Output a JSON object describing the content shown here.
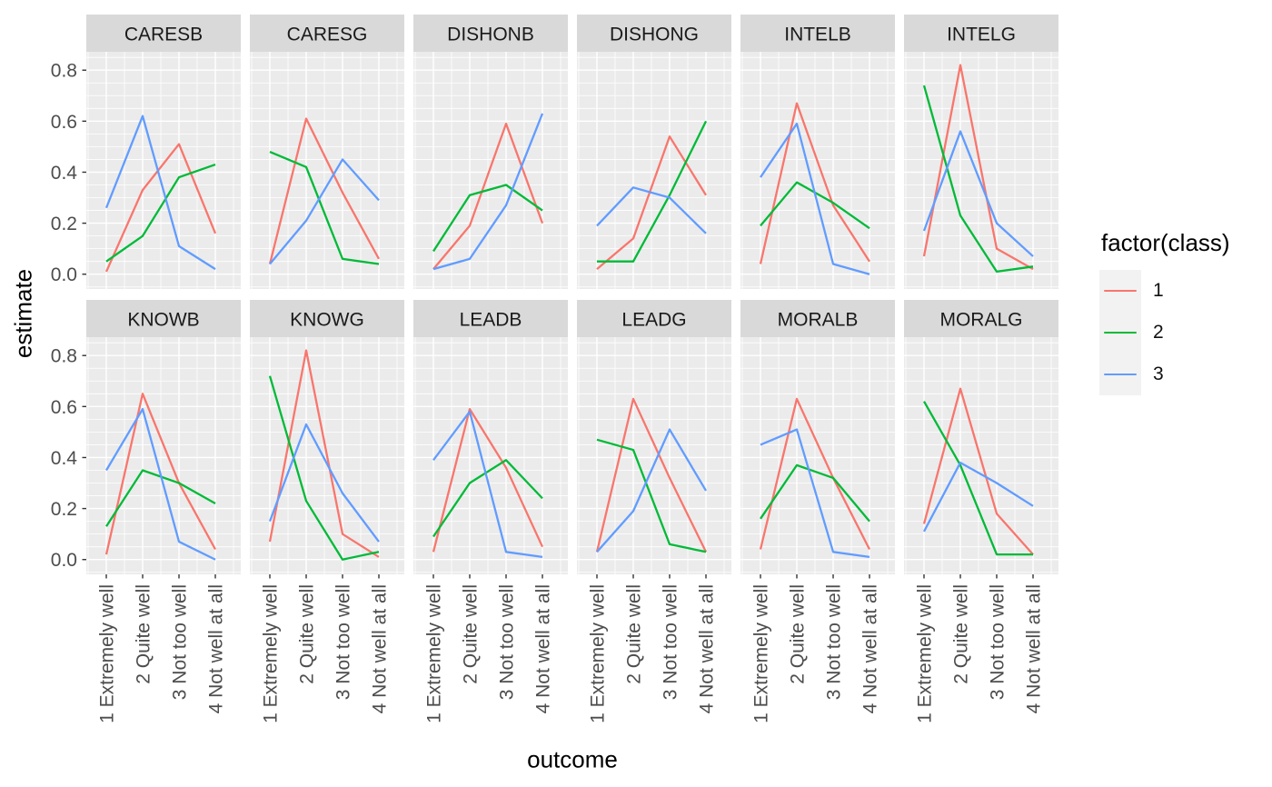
{
  "figure": {
    "y_axis_title": "estimate",
    "x_axis_title": "outcome"
  },
  "legend": {
    "title": "factor(class)",
    "items": [
      {
        "label": "1",
        "color": "#F8766D"
      },
      {
        "label": "2",
        "color": "#00BA38"
      },
      {
        "label": "3",
        "color": "#619CFF"
      }
    ]
  },
  "colors": {
    "background": "#FFFFFF",
    "panel_bg": "#EBEBEB",
    "strip_bg": "#D9D9D9",
    "grid": "#FFFFFF",
    "strip_text": "#1A1A1A",
    "tick_text": "#4D4D4D",
    "tick_mark": "#333333",
    "legend_key_bg": "#F2F2F2"
  },
  "chart_data": {
    "type": "line",
    "title": "",
    "xlabel": "outcome",
    "ylabel": "estimate",
    "x": [
      1,
      2,
      3,
      4
    ],
    "x_tick_labels": [
      "1 Extremely well",
      "2 Quite well",
      "3 Not too well",
      "4 Not well at all"
    ],
    "y_ticks": [
      0.0,
      0.2,
      0.4,
      0.6,
      0.8
    ],
    "ylim": [
      0,
      0.87
    ],
    "grid": true,
    "legend_title": "factor(class)",
    "legend_position": "right",
    "facet_layout": {
      "rows": 2,
      "cols": 6
    },
    "facets": [
      {
        "name": "CARESB",
        "series": [
          {
            "name": "1",
            "values": [
              0.01,
              0.33,
              0.51,
              0.16
            ]
          },
          {
            "name": "2",
            "values": [
              0.05,
              0.15,
              0.38,
              0.43
            ]
          },
          {
            "name": "3",
            "values": [
              0.26,
              0.62,
              0.11,
              0.02
            ]
          }
        ]
      },
      {
        "name": "CARESG",
        "series": [
          {
            "name": "1",
            "values": [
              0.04,
              0.61,
              0.32,
              0.06
            ]
          },
          {
            "name": "2",
            "values": [
              0.48,
              0.42,
              0.06,
              0.04
            ]
          },
          {
            "name": "3",
            "values": [
              0.04,
              0.21,
              0.45,
              0.29
            ]
          }
        ]
      },
      {
        "name": "DISHONB",
        "series": [
          {
            "name": "1",
            "values": [
              0.02,
              0.19,
              0.59,
              0.2
            ]
          },
          {
            "name": "2",
            "values": [
              0.09,
              0.31,
              0.35,
              0.25
            ]
          },
          {
            "name": "3",
            "values": [
              0.02,
              0.06,
              0.27,
              0.63
            ]
          }
        ]
      },
      {
        "name": "DISHONG",
        "series": [
          {
            "name": "1",
            "values": [
              0.02,
              0.14,
              0.54,
              0.31
            ]
          },
          {
            "name": "2",
            "values": [
              0.05,
              0.05,
              0.31,
              0.6
            ]
          },
          {
            "name": "3",
            "values": [
              0.19,
              0.34,
              0.3,
              0.16
            ]
          }
        ]
      },
      {
        "name": "INTELB",
        "series": [
          {
            "name": "1",
            "values": [
              0.04,
              0.67,
              0.27,
              0.05
            ]
          },
          {
            "name": "2",
            "values": [
              0.19,
              0.36,
              0.28,
              0.18
            ]
          },
          {
            "name": "3",
            "values": [
              0.38,
              0.59,
              0.04,
              0.0
            ]
          }
        ]
      },
      {
        "name": "INTELG",
        "series": [
          {
            "name": "1",
            "values": [
              0.07,
              0.82,
              0.1,
              0.02
            ]
          },
          {
            "name": "2",
            "values": [
              0.74,
              0.23,
              0.01,
              0.03
            ]
          },
          {
            "name": "3",
            "values": [
              0.17,
              0.56,
              0.2,
              0.07
            ]
          }
        ]
      },
      {
        "name": "KNOWB",
        "series": [
          {
            "name": "1",
            "values": [
              0.02,
              0.65,
              0.3,
              0.04
            ]
          },
          {
            "name": "2",
            "values": [
              0.13,
              0.35,
              0.3,
              0.22
            ]
          },
          {
            "name": "3",
            "values": [
              0.35,
              0.59,
              0.07,
              0.0
            ]
          }
        ]
      },
      {
        "name": "KNOWG",
        "series": [
          {
            "name": "1",
            "values": [
              0.07,
              0.82,
              0.1,
              0.01
            ]
          },
          {
            "name": "2",
            "values": [
              0.72,
              0.23,
              0.0,
              0.03
            ]
          },
          {
            "name": "3",
            "values": [
              0.15,
              0.53,
              0.26,
              0.07
            ]
          }
        ]
      },
      {
        "name": "LEADB",
        "series": [
          {
            "name": "1",
            "values": [
              0.03,
              0.59,
              0.36,
              0.05
            ]
          },
          {
            "name": "2",
            "values": [
              0.09,
              0.3,
              0.39,
              0.24
            ]
          },
          {
            "name": "3",
            "values": [
              0.39,
              0.58,
              0.03,
              0.01
            ]
          }
        ]
      },
      {
        "name": "LEADG",
        "series": [
          {
            "name": "1",
            "values": [
              0.03,
              0.63,
              0.32,
              0.03
            ]
          },
          {
            "name": "2",
            "values": [
              0.47,
              0.43,
              0.06,
              0.03
            ]
          },
          {
            "name": "3",
            "values": [
              0.03,
              0.19,
              0.51,
              0.27
            ]
          }
        ]
      },
      {
        "name": "MORALB",
        "series": [
          {
            "name": "1",
            "values": [
              0.04,
              0.63,
              0.32,
              0.04
            ]
          },
          {
            "name": "2",
            "values": [
              0.16,
              0.37,
              0.32,
              0.15
            ]
          },
          {
            "name": "3",
            "values": [
              0.45,
              0.51,
              0.03,
              0.01
            ]
          }
        ]
      },
      {
        "name": "MORALG",
        "series": [
          {
            "name": "1",
            "values": [
              0.14,
              0.67,
              0.18,
              0.02
            ]
          },
          {
            "name": "2",
            "values": [
              0.62,
              0.37,
              0.02,
              0.02
            ]
          },
          {
            "name": "3",
            "values": [
              0.11,
              0.38,
              0.3,
              0.21
            ]
          }
        ]
      }
    ]
  }
}
